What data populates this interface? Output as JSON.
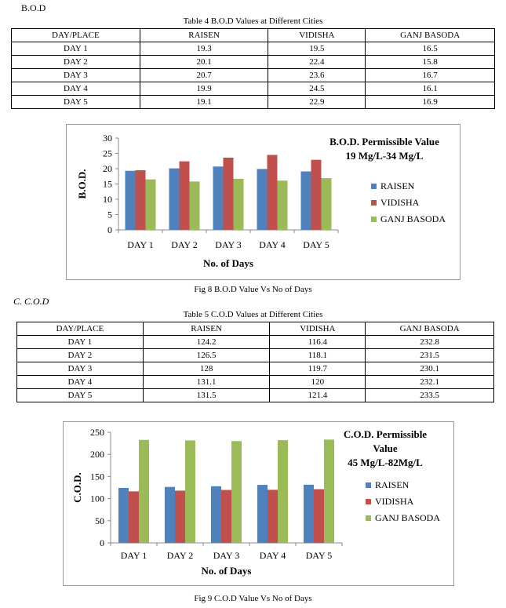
{
  "bod": {
    "section_label": "B.O.D",
    "table_caption": "Table 4 B.O.D Values at Different Cities",
    "headers": [
      "DAY/PLACE",
      "RAISEN",
      "VIDISHA",
      "GANJ BASODA"
    ],
    "rows": [
      [
        "DAY 1",
        "19.3",
        "19.5",
        "16.5"
      ],
      [
        "DAY 2",
        "20.1",
        "22.4",
        "15.8"
      ],
      [
        "DAY 3",
        "20.7",
        "23.6",
        "16.7"
      ],
      [
        "DAY 4",
        "19.9",
        "24.5",
        "16.1"
      ],
      [
        "DAY 5",
        "19.1",
        "22.9",
        "16.9"
      ]
    ],
    "figure_caption": "Fig 8  B.O.D Value Vs No of Days"
  },
  "cod": {
    "section_label": "C.   C.O.D",
    "table_caption": "Table 5 C.O.D Values at Different Cities",
    "headers": [
      "DAY/PLACE",
      "RAISEN",
      "VIDISHA",
      "GANJ BASODA"
    ],
    "rows": [
      [
        "DAY 1",
        "124.2",
        "116.4",
        "232.8"
      ],
      [
        "DAY 2",
        "126.5",
        "118.1",
        "231.5"
      ],
      [
        "DAY 3",
        "128",
        "119.7",
        "230.1"
      ],
      [
        "DAY 4",
        "131.1",
        "120",
        "232.1"
      ],
      [
        "DAY 5",
        "131.5",
        "121.4",
        "233.5"
      ]
    ],
    "figure_caption": "Fig 9  C.O.D Value Vs No of Days"
  },
  "chart_data": [
    {
      "type": "bar",
      "annotation_lines": [
        "B.O.D. Permissible Value",
        "19 Mg/L-34 Mg/L"
      ],
      "xlabel": "No. of Days",
      "ylabel": "B.O.D.",
      "ylim": [
        0,
        30
      ],
      "yticks": [
        0,
        5,
        10,
        15,
        20,
        25,
        30
      ],
      "categories": [
        "DAY 1",
        "DAY 2",
        "DAY 3",
        "DAY 4",
        "DAY 5"
      ],
      "series": [
        {
          "name": "RAISEN",
          "color": "#4F81BD",
          "values": [
            19.3,
            20.1,
            20.7,
            19.9,
            19.1
          ]
        },
        {
          "name": "VIDISHA",
          "color": "#C0504D",
          "values": [
            19.5,
            22.4,
            23.6,
            24.5,
            22.9
          ]
        },
        {
          "name": "GANJ BASODA",
          "color": "#9BBB59",
          "values": [
            16.5,
            15.8,
            16.7,
            16.1,
            16.9
          ]
        }
      ],
      "grid": false,
      "legend": "right"
    },
    {
      "type": "bar",
      "annotation_lines": [
        "C.O.D. Permissible",
        "Value",
        "45 Mg/L-82Mg/L"
      ],
      "xlabel": "No. of Days",
      "ylabel": "C.O.D.",
      "ylim": [
        0,
        250
      ],
      "yticks": [
        0,
        50,
        100,
        150,
        200,
        250
      ],
      "categories": [
        "DAY 1",
        "DAY 2",
        "DAY 3",
        "DAY 4",
        "DAY 5"
      ],
      "series": [
        {
          "name": "RAISEN",
          "color": "#4F81BD",
          "values": [
            124.2,
            126.5,
            128,
            131.1,
            131.5
          ]
        },
        {
          "name": "VIDISHA",
          "color": "#C0504D",
          "values": [
            116.4,
            118.1,
            119.7,
            120,
            121.4
          ]
        },
        {
          "name": "GANJ BASODA",
          "color": "#9BBB59",
          "values": [
            232.8,
            231.5,
            230.1,
            232.1,
            233.5
          ]
        }
      ],
      "grid": false,
      "legend": "right"
    }
  ]
}
